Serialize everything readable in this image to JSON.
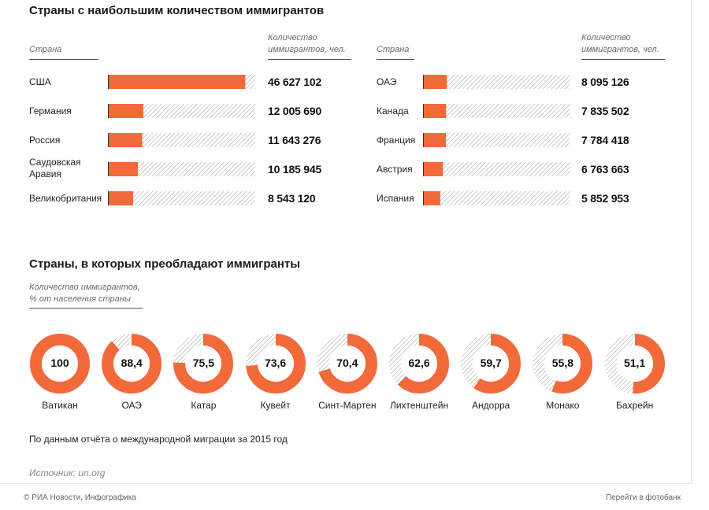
{
  "page": {
    "title_top": "Страны с наибольшим количеством иммигрантов",
    "title_bottom": "Страны, в которых преобладают иммигранты",
    "note": "По данным отчёта о международной миграции за 2015 год",
    "source": "Источник: un.org",
    "footer_left": "© РИА Новости, Инфографика",
    "footer_right": "Перейти в фотобанк"
  },
  "colors": {
    "accent": "#f26a3a",
    "hatch": "#9a9a9a"
  },
  "bar_section": {
    "country_header": "Страна",
    "value_header_line1": "Количество",
    "value_header_line2": "иммигрантов, чел."
  },
  "pct_section": {
    "header_line1": "Количество иммигрантов,",
    "header_line2": "% от населения страны"
  },
  "chart_data": [
    {
      "type": "bar",
      "orientation": "horizontal",
      "title": "Страны с наибольшим количеством иммигрантов",
      "xlim": [
        0,
        50000000
      ],
      "columns": [
        {
          "categories": [
            [
              "США"
            ],
            [
              "Германия"
            ],
            [
              "Россия"
            ],
            [
              "Саудовская",
              "Аравия"
            ],
            [
              "Великобритания"
            ]
          ],
          "values": [
            46627102,
            12005690,
            11643276,
            10185945,
            8543120
          ],
          "labels": [
            "46 627 102",
            "12 005 690",
            "11 643 276",
            "10 185 945",
            "8 543 120"
          ]
        },
        {
          "categories": [
            [
              "ОАЭ"
            ],
            [
              "Канада"
            ],
            [
              "Франция"
            ],
            [
              "Австрия"
            ],
            [
              "Испания"
            ]
          ],
          "values": [
            8095126,
            7835502,
            7784418,
            6763663,
            5852953
          ],
          "labels": [
            "8 095 126",
            "7 835 502",
            "7 784 418",
            "6 763 663",
            "5 852 953"
          ]
        }
      ]
    },
    {
      "type": "pie",
      "variant": "donut",
      "title": "Страны, в которых преобладают иммигранты",
      "max": 100,
      "categories": [
        "Ватикан",
        "ОАЭ",
        "Катар",
        "Кувейт",
        "Синт-Мартен",
        "Лихтенштейн",
        "Андорра",
        "Монако",
        "Бахрейн"
      ],
      "values": [
        100,
        88.4,
        75.5,
        73.6,
        70.4,
        62.6,
        59.7,
        55.8,
        51.1
      ],
      "labels": [
        "100",
        "88,4",
        "75,5",
        "73,6",
        "70,4",
        "62,6",
        "59,7",
        "55,8",
        "51,1"
      ]
    }
  ]
}
